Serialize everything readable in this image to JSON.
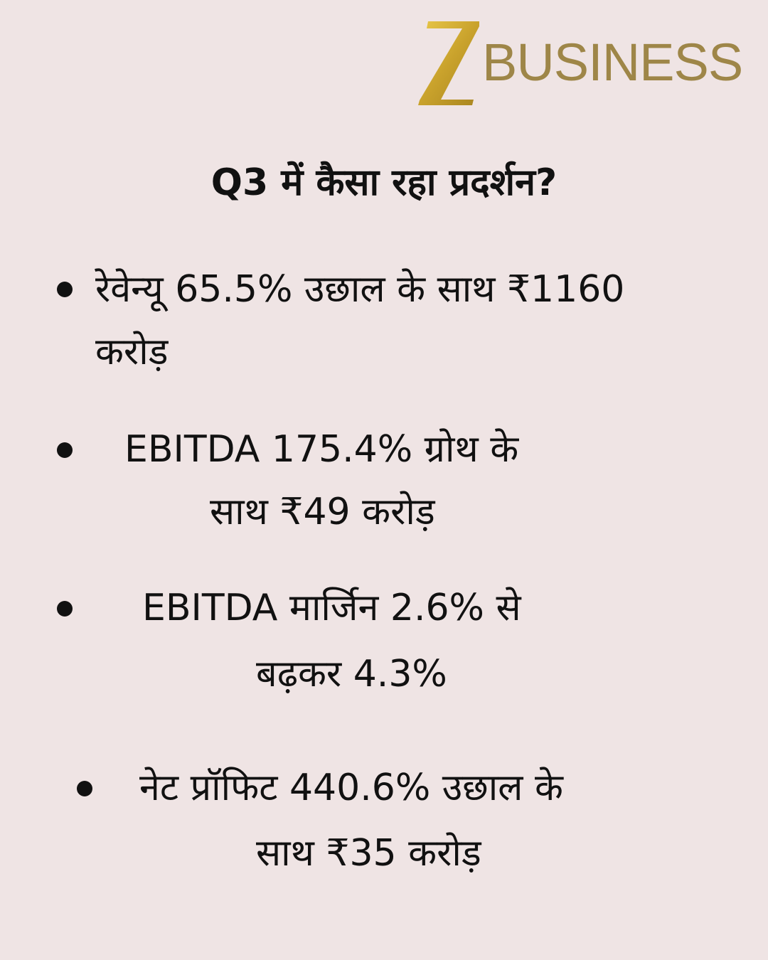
{
  "brand": {
    "logo_letter": "Z",
    "logo_word": "BUSINESS",
    "gold_color": "#c9a634",
    "word_color": "#9e8648"
  },
  "background_color": "#efe4e4",
  "title": "Q3 में कैसा रहा प्रदर्शन?",
  "bullets": [
    {
      "line1": "रेवेन्यू 65.5% उछाल के साथ ₹1160",
      "line2": "करोड़"
    },
    {
      "line1": "EBITDA 175.4% ग्रोथ के",
      "line2": "साथ ₹49 करोड़"
    },
    {
      "line1": "EBITDA मार्जिन 2.6% से",
      "line2": "बढ़कर 4.3%"
    },
    {
      "line1": "नेट प्रॉफिट 440.6% उछाल के",
      "line2": "साथ ₹35 करोड़"
    }
  ]
}
